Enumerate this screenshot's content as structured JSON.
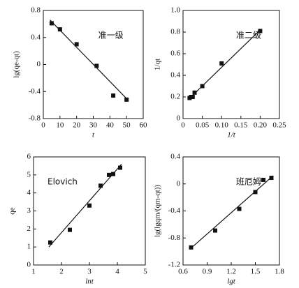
{
  "chart_data": [
    {
      "type": "scatter",
      "annotation": "准一级",
      "xlabel": "t",
      "ylabel": "lg(qe-qt)",
      "xlim": [
        0,
        60
      ],
      "xticks": [
        0,
        10,
        20,
        30,
        40,
        50,
        60
      ],
      "ylim": [
        -0.8,
        0.8
      ],
      "yticks": [
        -0.8,
        -0.4,
        0,
        0.4,
        0.8
      ],
      "points": {
        "x": [
          5,
          10,
          20,
          32,
          42,
          50
        ],
        "y": [
          0.61,
          0.52,
          0.3,
          -0.02,
          -0.46,
          -0.52
        ]
      },
      "fit": {
        "x": [
          4,
          51
        ],
        "y": [
          0.66,
          -0.53
        ]
      },
      "color": "#111111"
    },
    {
      "type": "scatter",
      "annotation": "准二级",
      "xlabel": "1/t",
      "ylabel": "1/qt",
      "xlim": [
        0,
        0.25
      ],
      "xticks": [
        0,
        0.05,
        {
          "value": 0.1,
          "label": "0.10"
        },
        0.15,
        {
          "value": 0.2,
          "label": "0.20"
        },
        0.25
      ],
      "ylim": [
        0,
        1
      ],
      "yticks": [
        0,
        0.2,
        0.4,
        0.6,
        0.8,
        {
          "value": 1,
          "label": "1.0"
        }
      ],
      "points": {
        "x": [
          0.017,
          0.021,
          0.025,
          0.03,
          0.05,
          0.1,
          0.2
        ],
        "y": [
          0.19,
          0.2,
          0.2,
          0.24,
          0.3,
          0.51,
          0.81
        ]
      },
      "fit": {
        "x": [
          0.015,
          0.2
        ],
        "y": [
          0.18,
          0.82
        ]
      },
      "color": "#111111"
    },
    {
      "type": "scatter",
      "annotation": "Elovich",
      "xlabel": "lnt",
      "ylabel": "qe",
      "xlim": [
        1,
        5
      ],
      "xticks": [
        1,
        2,
        3,
        4,
        5
      ],
      "ylim": [
        0,
        6
      ],
      "yticks": [
        0,
        1,
        2,
        3,
        4,
        5,
        6
      ],
      "points": {
        "x": [
          1.6,
          2.3,
          3.0,
          3.4,
          3.7,
          3.85,
          4.1
        ],
        "y": [
          1.25,
          1.95,
          3.3,
          4.4,
          5.0,
          5.05,
          5.4
        ]
      },
      "fit": {
        "x": [
          1.55,
          4.15
        ],
        "y": [
          1.0,
          5.6
        ]
      },
      "color": "#111111"
    },
    {
      "type": "scatter",
      "annotation": "班厄姆",
      "xlabel": "lgt",
      "ylabel": "lg(lgqm/(qm-qt))",
      "xlim": [
        0.6,
        1.8
      ],
      "xticks": [
        0.6,
        0.9,
        1.2,
        1.5,
        1.8
      ],
      "ylim": [
        -1.2,
        0.4
      ],
      "yticks": [
        -1.2,
        -0.8,
        -0.4,
        0,
        0.4
      ],
      "points": {
        "x": [
          0.7,
          1.0,
          1.3,
          1.5,
          1.6,
          1.7
        ],
        "y": [
          -0.94,
          -0.69,
          -0.37,
          -0.12,
          0.06,
          0.09
        ]
      },
      "fit": {
        "x": [
          0.7,
          1.72
        ],
        "y": [
          -0.95,
          0.12
        ]
      },
      "color": "#111111"
    }
  ]
}
